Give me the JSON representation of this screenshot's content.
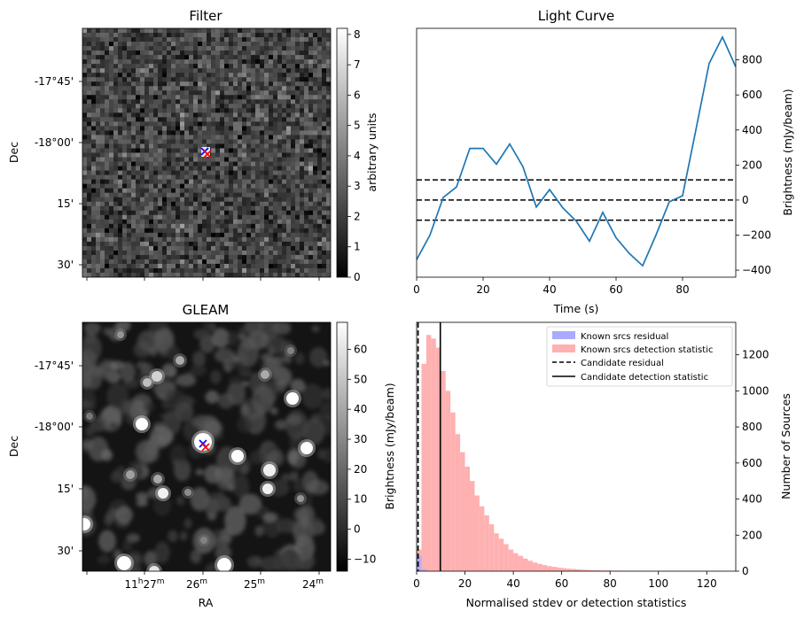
{
  "chart_data": [
    {
      "type": "heatmap",
      "title": "Filter",
      "ylabel": "Dec",
      "yticks": [
        "-17°45'",
        "-18°00'",
        "15'",
        "30'"
      ],
      "colorbar": {
        "label": "arbitrary units",
        "ticks": [
          0,
          1,
          2,
          3,
          4,
          5,
          6,
          7,
          8
        ],
        "range": [
          0,
          8.2
        ],
        "colormap": "gray"
      },
      "markers": [
        {
          "symbol": "x",
          "color": "#0000ff"
        },
        {
          "symbol": "x",
          "color": "#ff0000"
        }
      ]
    },
    {
      "type": "line",
      "title": "Light Curve",
      "xlabel": "Time (s)",
      "ylabel": "Brightness (mJy/beam)",
      "xlim": [
        0,
        96
      ],
      "ylim": [
        -440,
        980
      ],
      "xticks": [
        0,
        20,
        40,
        60,
        80
      ],
      "yticks": [
        -400,
        -200,
        0,
        200,
        400,
        600,
        800
      ],
      "line_color": "#1f77b4",
      "x": [
        0,
        4,
        8,
        12,
        16,
        20,
        24,
        28,
        32,
        36,
        40,
        44,
        48,
        52,
        56,
        60,
        64,
        68,
        72,
        76,
        80,
        84,
        88,
        92,
        96
      ],
      "y": [
        -340,
        -200,
        15,
        75,
        295,
        295,
        205,
        320,
        190,
        -40,
        60,
        -45,
        -120,
        -235,
        -70,
        -215,
        -305,
        -375,
        -200,
        -10,
        25,
        400,
        780,
        930,
        760
      ],
      "hlines": [
        {
          "y": 115,
          "style": "dashed"
        },
        {
          "y": 0,
          "style": "dashed"
        },
        {
          "y": -115,
          "style": "dashed"
        }
      ]
    },
    {
      "type": "heatmap",
      "title": "GLEAM",
      "xlabel": "RA",
      "ylabel": "Dec",
      "xticks": [
        "11h27m",
        "26m",
        "25m",
        "24m"
      ],
      "yticks": [
        "-17°45'",
        "-18°00'",
        "15'",
        "30'"
      ],
      "colorbar": {
        "ticks": [
          -10,
          0,
          10,
          20,
          30,
          40,
          50,
          60
        ],
        "range": [
          -14,
          69
        ],
        "colormap": "gray"
      },
      "markers": [
        {
          "symbol": "x",
          "color": "#0000ff"
        },
        {
          "symbol": "x",
          "color": "#ff0000"
        }
      ]
    },
    {
      "type": "histogram",
      "xlabel": "Normalised stdev or detection statistics",
      "ylabel_left": "Brightness (mJy/beam)",
      "ylabel_right": "Number of Sources",
      "xlim": [
        0,
        132
      ],
      "ylim": [
        0,
        1380
      ],
      "xticks": [
        0,
        20,
        40,
        60,
        80,
        100,
        120
      ],
      "yticks": [
        0,
        200,
        400,
        600,
        800,
        1000,
        1200
      ],
      "bin_width": 2,
      "series": [
        {
          "name": "Known srcs residual",
          "color": "#aaaaff",
          "bins_start": 0,
          "counts": [
            85,
            10
          ]
        },
        {
          "name": "Known srcs detection statistic",
          "color": "#ffb0b0",
          "bins_start": 0,
          "counts": [
            120,
            1150,
            1310,
            1290,
            1240,
            1110,
            1000,
            880,
            760,
            660,
            580,
            500,
            420,
            360,
            310,
            260,
            210,
            180,
            150,
            120,
            100,
            85,
            70,
            58,
            48,
            40,
            34,
            28,
            24,
            20,
            17,
            14,
            12,
            10,
            8,
            7,
            6,
            5,
            4,
            4,
            3,
            3,
            2,
            2,
            2,
            2,
            1,
            1,
            1,
            1,
            1,
            1,
            1,
            1,
            1,
            1,
            1,
            1,
            1,
            1,
            1,
            1,
            1,
            1,
            1
          ]
        }
      ],
      "vlines": [
        {
          "name": "Candidate residual",
          "x": 0.6,
          "style": "dashed"
        },
        {
          "name": "Candidate detection statistic",
          "x": 9.8,
          "style": "solid"
        }
      ],
      "legend_position": "top-right"
    }
  ]
}
